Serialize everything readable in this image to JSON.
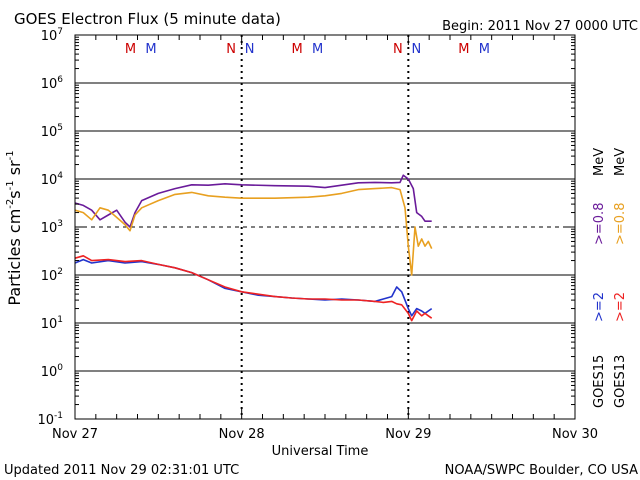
{
  "header": {
    "title": "GOES Electron Flux (5 minute data)",
    "begin": "Begin: 2011 Nov 27 0000 UTC"
  },
  "footer": {
    "updated": "Updated 2011 Nov 29 02:31:01 UTC",
    "source": "NOAA/SWPC Boulder, CO USA"
  },
  "chart_data": {
    "type": "line",
    "title": "GOES Electron Flux (5 minute data)",
    "xlabel": "Universal Time",
    "ylabel_base": "Particles cm",
    "ylabel_exp1": "-2",
    "ylabel_mid1": "s",
    "ylabel_exp2": "-1",
    "ylabel_mid2": "sr",
    "ylabel_exp3": "-1",
    "xlim": [
      0,
      3
    ],
    "ylim_log10": [
      -1,
      7
    ],
    "x_ticks": [
      {
        "x": 0,
        "label": "Nov 27"
      },
      {
        "x": 1,
        "label": "Nov 28"
      },
      {
        "x": 2,
        "label": "Nov 29"
      },
      {
        "x": 3,
        "label": "Nov 30"
      }
    ],
    "y_ticks": [
      {
        "exp": 7,
        "label_base": "10",
        "label_exp": "7"
      },
      {
        "exp": 6,
        "label_base": "10",
        "label_exp": "6"
      },
      {
        "exp": 5,
        "label_base": "10",
        "label_exp": "5"
      },
      {
        "exp": 4,
        "label_base": "10",
        "label_exp": "4"
      },
      {
        "exp": 3,
        "label_base": "10",
        "label_exp": "3"
      },
      {
        "exp": 2,
        "label_base": "10",
        "label_exp": "2"
      },
      {
        "exp": 1,
        "label_base": "10",
        "label_exp": "1"
      },
      {
        "exp": 0,
        "label_base": "10",
        "label_exp": "0"
      },
      {
        "exp": -1,
        "label_base": "10",
        "label_exp": "-1"
      }
    ],
    "gridlines_solid_exp": [
      6,
      5,
      4,
      2,
      1,
      0
    ],
    "gridline_dashed_exp": 3,
    "markers": [
      {
        "x": 0.333,
        "label": "M",
        "color": "#cc0000"
      },
      {
        "x": 0.456,
        "label": "M",
        "color": "#2233cc"
      },
      {
        "x": 0.937,
        "label": "N",
        "color": "#cc0000"
      },
      {
        "x": 1.048,
        "label": "N",
        "color": "#2233cc"
      },
      {
        "x": 1.333,
        "label": "M",
        "color": "#cc0000"
      },
      {
        "x": 1.456,
        "label": "M",
        "color": "#2233cc"
      },
      {
        "x": 1.937,
        "label": "N",
        "color": "#cc0000"
      },
      {
        "x": 2.048,
        "label": "N",
        "color": "#2233cc"
      },
      {
        "x": 2.333,
        "label": "M",
        "color": "#cc0000"
      },
      {
        "x": 2.456,
        "label": "M",
        "color": "#2233cc"
      }
    ],
    "right_legend": [
      {
        "text": "GOES15",
        "color": "#000000"
      },
      {
        "text": "GOES13",
        "color": "#000000"
      },
      {
        "text": ">=2",
        "color": "#2233cc"
      },
      {
        "text": ">=2",
        "color": "#ee2222"
      },
      {
        "text": ">=0.8",
        "color": "#6a1b9a"
      },
      {
        "text": ">=0.8",
        "color": "#e8a020"
      },
      {
        "text": "MeV",
        "color": "#000000"
      },
      {
        "text": "MeV",
        "color": "#000000"
      }
    ],
    "series": [
      {
        "name": "GOES15 >=0.8 MeV",
        "color": "#6a1b9a",
        "points": [
          [
            0,
            3.5
          ],
          [
            0.05,
            3.45
          ],
          [
            0.1,
            3.35
          ],
          [
            0.15,
            3.15
          ],
          [
            0.2,
            3.25
          ],
          [
            0.25,
            3.35
          ],
          [
            0.3,
            3.1
          ],
          [
            0.33,
            3.0
          ],
          [
            0.36,
            3.3
          ],
          [
            0.4,
            3.55
          ],
          [
            0.5,
            3.7
          ],
          [
            0.6,
            3.8
          ],
          [
            0.7,
            3.88
          ],
          [
            0.8,
            3.87
          ],
          [
            0.9,
            3.9
          ],
          [
            1.0,
            3.88
          ],
          [
            1.2,
            3.86
          ],
          [
            1.4,
            3.85
          ],
          [
            1.5,
            3.82
          ],
          [
            1.6,
            3.87
          ],
          [
            1.7,
            3.92
          ],
          [
            1.8,
            3.93
          ],
          [
            1.9,
            3.92
          ],
          [
            1.95,
            3.93
          ],
          [
            1.97,
            4.08
          ],
          [
            2.0,
            4.0
          ],
          [
            2.03,
            3.8
          ],
          [
            2.05,
            3.3
          ],
          [
            2.08,
            3.22
          ],
          [
            2.1,
            3.12
          ],
          [
            2.14,
            3.12
          ]
        ]
      },
      {
        "name": "GOES13 >=0.8 MeV",
        "color": "#e8a020",
        "points": [
          [
            0,
            3.35
          ],
          [
            0.05,
            3.3
          ],
          [
            0.1,
            3.15
          ],
          [
            0.15,
            3.4
          ],
          [
            0.2,
            3.35
          ],
          [
            0.25,
            3.2
          ],
          [
            0.3,
            3.05
          ],
          [
            0.33,
            2.92
          ],
          [
            0.36,
            3.25
          ],
          [
            0.4,
            3.4
          ],
          [
            0.5,
            3.55
          ],
          [
            0.6,
            3.68
          ],
          [
            0.7,
            3.72
          ],
          [
            0.8,
            3.65
          ],
          [
            0.9,
            3.62
          ],
          [
            1.0,
            3.6
          ],
          [
            1.2,
            3.6
          ],
          [
            1.4,
            3.62
          ],
          [
            1.5,
            3.65
          ],
          [
            1.6,
            3.7
          ],
          [
            1.7,
            3.78
          ],
          [
            1.8,
            3.8
          ],
          [
            1.9,
            3.82
          ],
          [
            1.95,
            3.78
          ],
          [
            1.98,
            3.4
          ],
          [
            2.0,
            2.6
          ],
          [
            2.02,
            2.0
          ],
          [
            2.04,
            3.0
          ],
          [
            2.06,
            2.6
          ],
          [
            2.08,
            2.75
          ],
          [
            2.1,
            2.6
          ],
          [
            2.12,
            2.7
          ],
          [
            2.14,
            2.55
          ]
        ]
      },
      {
        "name": "GOES15 >=2 MeV",
        "color": "#2233cc",
        "points": [
          [
            0,
            2.25
          ],
          [
            0.05,
            2.32
          ],
          [
            0.1,
            2.25
          ],
          [
            0.2,
            2.3
          ],
          [
            0.3,
            2.25
          ],
          [
            0.4,
            2.28
          ],
          [
            0.5,
            2.22
          ],
          [
            0.6,
            2.15
          ],
          [
            0.7,
            2.05
          ],
          [
            0.8,
            1.9
          ],
          [
            0.9,
            1.72
          ],
          [
            1.0,
            1.65
          ],
          [
            1.1,
            1.58
          ],
          [
            1.2,
            1.55
          ],
          [
            1.3,
            1.52
          ],
          [
            1.4,
            1.5
          ],
          [
            1.5,
            1.48
          ],
          [
            1.6,
            1.5
          ],
          [
            1.7,
            1.48
          ],
          [
            1.8,
            1.45
          ],
          [
            1.85,
            1.5
          ],
          [
            1.9,
            1.55
          ],
          [
            1.93,
            1.75
          ],
          [
            1.96,
            1.65
          ],
          [
            2.0,
            1.3
          ],
          [
            2.02,
            1.15
          ],
          [
            2.05,
            1.3
          ],
          [
            2.08,
            1.25
          ],
          [
            2.1,
            1.2
          ],
          [
            2.12,
            1.25
          ],
          [
            2.14,
            1.3
          ]
        ]
      },
      {
        "name": "GOES13 >=2 MeV",
        "color": "#ee2222",
        "points": [
          [
            0,
            2.35
          ],
          [
            0.05,
            2.4
          ],
          [
            0.1,
            2.3
          ],
          [
            0.2,
            2.32
          ],
          [
            0.3,
            2.28
          ],
          [
            0.4,
            2.3
          ],
          [
            0.5,
            2.22
          ],
          [
            0.6,
            2.15
          ],
          [
            0.7,
            2.05
          ],
          [
            0.8,
            1.9
          ],
          [
            0.9,
            1.75
          ],
          [
            1.0,
            1.65
          ],
          [
            1.1,
            1.6
          ],
          [
            1.2,
            1.55
          ],
          [
            1.3,
            1.52
          ],
          [
            1.4,
            1.5
          ],
          [
            1.5,
            1.5
          ],
          [
            1.6,
            1.48
          ],
          [
            1.7,
            1.48
          ],
          [
            1.8,
            1.45
          ],
          [
            1.85,
            1.43
          ],
          [
            1.9,
            1.45
          ],
          [
            1.93,
            1.4
          ],
          [
            1.96,
            1.38
          ],
          [
            2.0,
            1.2
          ],
          [
            2.02,
            1.05
          ],
          [
            2.05,
            1.25
          ],
          [
            2.08,
            1.15
          ],
          [
            2.1,
            1.2
          ],
          [
            2.12,
            1.15
          ],
          [
            2.14,
            1.1
          ]
        ]
      }
    ]
  }
}
